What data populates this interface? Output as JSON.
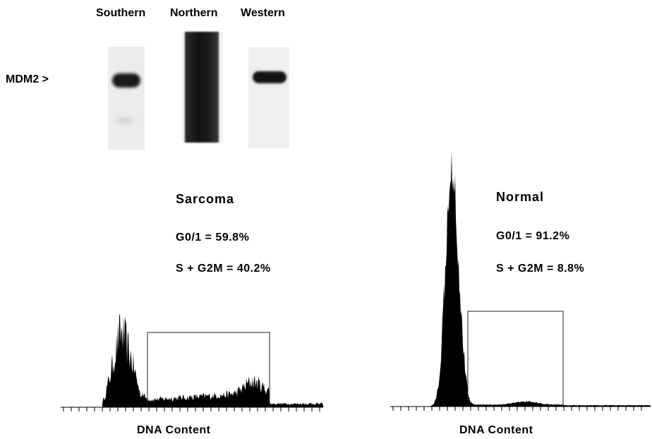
{
  "blot": {
    "labels": [
      "Southern",
      "Northern",
      "Western"
    ],
    "marker": "MDM2  >"
  },
  "panels": [
    {
      "title": "Sarcoma",
      "g01": "G0/1   =   59.8%",
      "sg2m": "S  +  G2M  =  40.2%",
      "xlabel": "DNA  Content"
    },
    {
      "title": "Normal",
      "g01": "G0/1   =   91.2%",
      "sg2m": "S  +  G2M  =  8.8%",
      "xlabel": "DNA  Content"
    }
  ]
}
